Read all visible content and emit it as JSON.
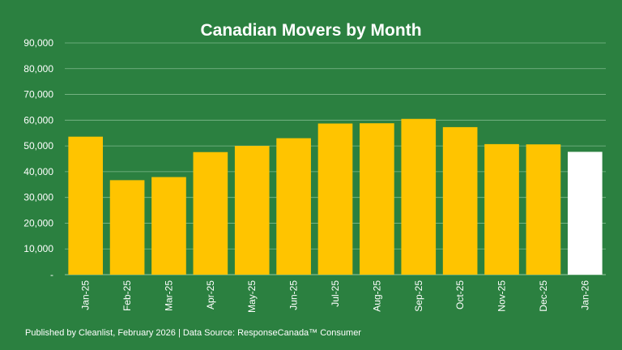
{
  "chart_data": {
    "type": "bar",
    "title": "Canadian Movers by Month",
    "xlabel": "",
    "ylabel": "",
    "categories": [
      "Jan-25",
      "Feb-25",
      "Mar-25",
      "Apr-25",
      "May-25",
      "Jun-25",
      "Jul-25",
      "Aug-25",
      "Sep-25",
      "Oct-25",
      "Nov-25",
      "Dec-25",
      "Jan-26"
    ],
    "values": [
      53600,
      36700,
      37900,
      47600,
      50000,
      53000,
      58700,
      58800,
      60500,
      57300,
      50700,
      50600,
      47700
    ],
    "ylim": [
      0,
      90000
    ],
    "yticks": [
      "-",
      "10,000",
      "20,000",
      "30,000",
      "40,000",
      "50,000",
      "60,000",
      "70,000",
      "80,000",
      "90,000"
    ],
    "grid": true,
    "bar_color": "#ffc400",
    "highlight_color": "#ffffff",
    "highlight_index": 12
  },
  "footer": "Published by Cleanlist, February 2026 | Data Source: ResponseCanada™ Consumer",
  "colors": {
    "background": "#2b8040",
    "grid": "#7fb98c",
    "text": "#ffffff"
  }
}
